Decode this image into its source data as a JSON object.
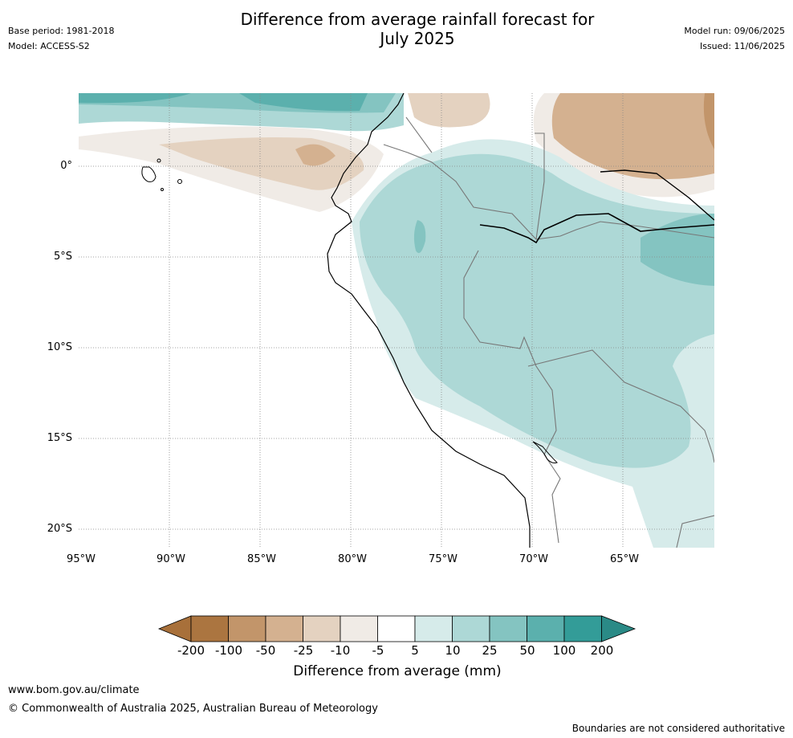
{
  "header": {
    "title_line1": "Difference from average rainfall forecast for",
    "title_line2": "July 2025",
    "base_period": "Base period: 1981-2018",
    "model": "Model: ACCESS-S2",
    "model_run": "Model run: 09/06/2025",
    "issued": "Issued: 11/06/2025"
  },
  "map": {
    "lat_ticks": [
      "0°",
      "5°S",
      "10°S",
      "15°S",
      "20°S"
    ],
    "lon_ticks": [
      "95°W",
      "90°W",
      "85°W",
      "80°W",
      "75°W",
      "70°W",
      "65°W"
    ]
  },
  "colorbar": {
    "title": "Difference from average (mm)",
    "labels": [
      "-200",
      "-100",
      "-50",
      "-25",
      "-10",
      "-5",
      "5",
      "10",
      "25",
      "50",
      "100",
      "200"
    ],
    "colors": [
      "#a8703a",
      "#ab7540",
      "#c2956a",
      "#d4b190",
      "#e4d2c0",
      "#f0ebe6",
      "#ffffff",
      "#d6ebea",
      "#add8d6",
      "#84c4c1",
      "#5bb0ad",
      "#339c98",
      "#2a8a86"
    ]
  },
  "footer": {
    "url": "www.bom.gov.au/climate",
    "copyright": "© Commonwealth of Australia 2025, Australian Bureau of Meteorology",
    "disclaimer": "Boundaries are not considered authoritative"
  }
}
